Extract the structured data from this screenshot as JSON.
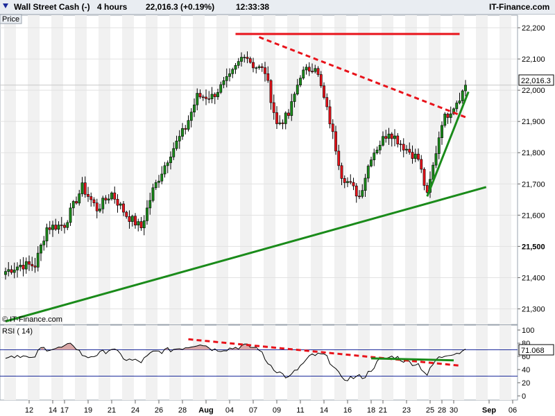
{
  "header": {
    "instrument": "Wall Street Cash (-)",
    "timeframe": "4 hours",
    "quote": "22,016.3 (+0.19%)",
    "time": "12:33:38",
    "brand": "IT-Finance.com",
    "tab_label": "Price"
  },
  "chart_data": {
    "type": "candlestick",
    "price_panel": {
      "y_ticks": [
        21300,
        21400,
        21500,
        21600,
        21700,
        21800,
        21900,
        22000,
        22100,
        22200
      ],
      "y_tick_labels": [
        "21,300",
        "21,400",
        "21,500",
        "21,600",
        "21,700",
        "21,800",
        "21,900",
        "22,000",
        "22,100",
        "22,200"
      ],
      "ylim": [
        21250,
        22240
      ],
      "last_price_label": "22,016.3",
      "last_price": 22016.3,
      "watermark": "© IT-Finance.com",
      "approx_close_path": [
        {
          "x": 0,
          "y": 21420
        },
        {
          "x": 5,
          "y": 21440
        },
        {
          "x": 10,
          "y": 21440
        },
        {
          "x": 14,
          "y": 21560
        },
        {
          "x": 20,
          "y": 21570
        },
        {
          "x": 26,
          "y": 21690
        },
        {
          "x": 31,
          "y": 21620
        },
        {
          "x": 36,
          "y": 21670
        },
        {
          "x": 41,
          "y": 21600
        },
        {
          "x": 46,
          "y": 21560
        },
        {
          "x": 50,
          "y": 21680
        },
        {
          "x": 56,
          "y": 21800
        },
        {
          "x": 61,
          "y": 21880
        },
        {
          "x": 65,
          "y": 21980
        },
        {
          "x": 70,
          "y": 21980
        },
        {
          "x": 76,
          "y": 22040
        },
        {
          "x": 81,
          "y": 22120
        },
        {
          "x": 84,
          "y": 22080
        },
        {
          "x": 88,
          "y": 22060
        },
        {
          "x": 92,
          "y": 21890
        },
        {
          "x": 96,
          "y": 21920
        },
        {
          "x": 100,
          "y": 22050
        },
        {
          "x": 105,
          "y": 22080
        },
        {
          "x": 110,
          "y": 21900
        },
        {
          "x": 114,
          "y": 21730
        },
        {
          "x": 120,
          "y": 21660
        },
        {
          "x": 124,
          "y": 21790
        },
        {
          "x": 130,
          "y": 21870
        },
        {
          "x": 135,
          "y": 21820
        },
        {
          "x": 140,
          "y": 21780
        },
        {
          "x": 143,
          "y": 21660
        },
        {
          "x": 148,
          "y": 21900
        },
        {
          "x": 152,
          "y": 21950
        },
        {
          "x": 156,
          "y": 22010
        }
      ],
      "trendlines": [
        {
          "kind": "horizontal-resistance",
          "color": "#e8121a",
          "style": "solid",
          "from": {
            "x": 78,
            "y": 22180
          },
          "to": {
            "x": 154,
            "y": 22180
          }
        },
        {
          "kind": "falling-resistance",
          "color": "#e8121a",
          "style": "dashed",
          "from": {
            "x": 86,
            "y": 22170
          },
          "to": {
            "x": 157,
            "y": 21910
          }
        },
        {
          "kind": "long-rising-support",
          "color": "#1a8b1a",
          "style": "solid",
          "from": {
            "x": 0,
            "y": 21260
          },
          "to": {
            "x": 163,
            "y": 21690
          }
        },
        {
          "kind": "steep-rising-support",
          "color": "#1a8b1a",
          "style": "solid",
          "from": {
            "x": 143,
            "y": 21660
          },
          "to": {
            "x": 157,
            "y": 21995
          }
        }
      ]
    },
    "rsi_panel": {
      "label": "RSI ( 14)",
      "period": 14,
      "last_value_label": "71.068",
      "last_value": 71.068,
      "y_ticks": [
        0,
        20,
        40,
        60,
        80,
        100
      ],
      "levels": [
        30,
        70
      ],
      "approx_path": [
        {
          "x": 0,
          "y": 60
        },
        {
          "x": 5,
          "y": 62
        },
        {
          "x": 9,
          "y": 55
        },
        {
          "x": 12,
          "y": 72
        },
        {
          "x": 18,
          "y": 72
        },
        {
          "x": 23,
          "y": 78
        },
        {
          "x": 27,
          "y": 58
        },
        {
          "x": 32,
          "y": 64
        },
        {
          "x": 36,
          "y": 72
        },
        {
          "x": 41,
          "y": 55
        },
        {
          "x": 46,
          "y": 52
        },
        {
          "x": 50,
          "y": 66
        },
        {
          "x": 56,
          "y": 70
        },
        {
          "x": 62,
          "y": 75
        },
        {
          "x": 66,
          "y": 80
        },
        {
          "x": 71,
          "y": 70
        },
        {
          "x": 76,
          "y": 72
        },
        {
          "x": 81,
          "y": 76
        },
        {
          "x": 86,
          "y": 72
        },
        {
          "x": 88,
          "y": 55
        },
        {
          "x": 92,
          "y": 38
        },
        {
          "x": 96,
          "y": 27
        },
        {
          "x": 100,
          "y": 45
        },
        {
          "x": 104,
          "y": 62
        },
        {
          "x": 108,
          "y": 62
        },
        {
          "x": 111,
          "y": 48
        },
        {
          "x": 114,
          "y": 25
        },
        {
          "x": 118,
          "y": 28
        },
        {
          "x": 122,
          "y": 30
        },
        {
          "x": 127,
          "y": 55
        },
        {
          "x": 132,
          "y": 60
        },
        {
          "x": 136,
          "y": 52
        },
        {
          "x": 140,
          "y": 48
        },
        {
          "x": 143,
          "y": 32
        },
        {
          "x": 146,
          "y": 55
        },
        {
          "x": 150,
          "y": 64
        },
        {
          "x": 154,
          "y": 66
        },
        {
          "x": 157,
          "y": 71
        }
      ],
      "trendlines": [
        {
          "kind": "falling-resistance",
          "color": "#e8121a",
          "style": "dashed",
          "from": {
            "x": 62,
            "y": 86
          },
          "to": {
            "x": 154,
            "y": 46
          }
        },
        {
          "kind": "horizontal-support",
          "color": "#1a8b1a",
          "style": "solid",
          "from": {
            "x": 124,
            "y": 57
          },
          "to": {
            "x": 152,
            "y": 54
          }
        }
      ]
    },
    "x_axis": {
      "tick_labels": [
        {
          "x": 8,
          "label": "12"
        },
        {
          "x": 16,
          "label": "14"
        },
        {
          "x": 20,
          "label": "17"
        },
        {
          "x": 28,
          "label": "19"
        },
        {
          "x": 36,
          "label": "21"
        },
        {
          "x": 44,
          "label": "24"
        },
        {
          "x": 52,
          "label": "26"
        },
        {
          "x": 60,
          "label": "28"
        },
        {
          "x": 68,
          "label": "Aug",
          "bold": true
        },
        {
          "x": 76,
          "label": "04"
        },
        {
          "x": 84,
          "label": "07"
        },
        {
          "x": 92,
          "label": "09"
        },
        {
          "x": 100,
          "label": "11"
        },
        {
          "x": 108,
          "label": "14"
        },
        {
          "x": 116,
          "label": "16"
        },
        {
          "x": 124,
          "label": "18"
        },
        {
          "x": 128,
          "label": "21"
        },
        {
          "x": 136,
          "label": "23"
        },
        {
          "x": 144,
          "label": "25"
        },
        {
          "x": 148,
          "label": "28"
        },
        {
          "x": 152,
          "label": "30"
        },
        {
          "x": 164,
          "label": "Sep",
          "bold": true
        },
        {
          "x": 172,
          "label": "06"
        }
      ]
    },
    "colors": {
      "up": "#1a8b1a",
      "down": "#e8121a",
      "rsi_line": "#000000",
      "level_line": "#1c2b9a"
    }
  }
}
